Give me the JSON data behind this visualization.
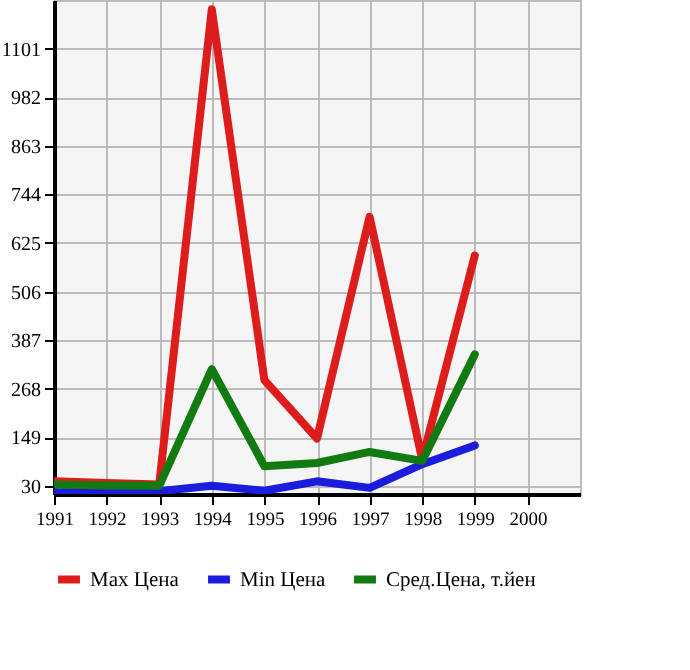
{
  "chart_data": {
    "type": "line",
    "x": [
      1991,
      1992,
      1993,
      1994,
      1995,
      1996,
      1997,
      1998,
      1999
    ],
    "series": [
      {
        "name": "Max Цена",
        "color": "#dd1c1c",
        "values": [
          41,
          37,
          33,
          1197,
          289,
          146,
          689,
          94,
          594
        ]
      },
      {
        "name": "Min Цена",
        "color": "#1c1cdd",
        "values": [
          14,
          15,
          17,
          30,
          18,
          41,
          25,
          83,
          129
        ]
      },
      {
        "name": "Сред.Цена, т.йен",
        "color": "#117a11",
        "values": [
          33,
          31,
          30,
          316,
          78,
          86,
          113,
          91,
          352
        ]
      }
    ],
    "xlim": [
      1991,
      2001
    ],
    "xticks": [
      1991,
      1992,
      1993,
      1994,
      1995,
      1996,
      1997,
      1998,
      1999,
      2000
    ],
    "ylim": [
      10,
      1220
    ],
    "yticks": [
      30,
      149,
      268,
      387,
      506,
      625,
      744,
      863,
      982,
      1101
    ],
    "grid": true,
    "legend": "bottom",
    "marker": "none",
    "line_style": "solid"
  }
}
